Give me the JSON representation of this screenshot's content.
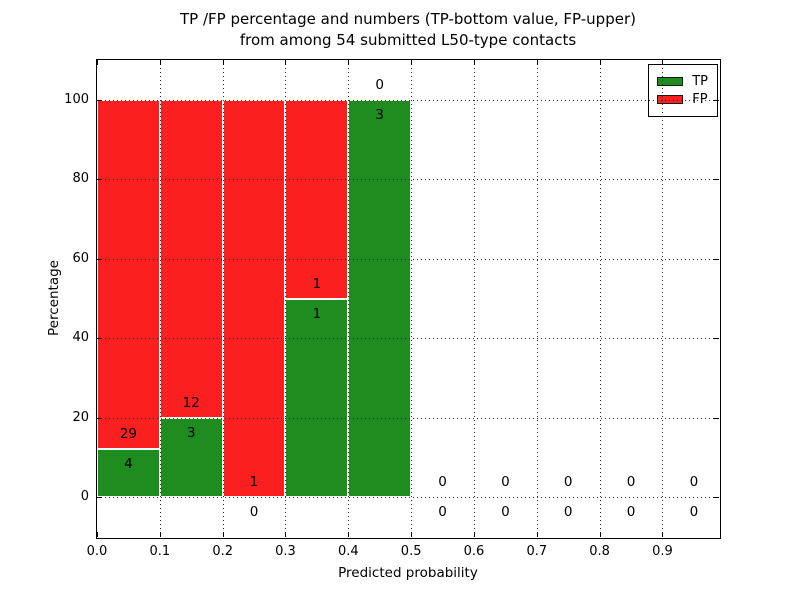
{
  "chart_data": {
    "type": "bar",
    "stacked": true,
    "title_line1": "TP /FP percentage and numbers (TP-bottom value, FP-upper)",
    "title_line2": "from among 54 submitted L50-type contacts",
    "xlabel": "Predicted probability",
    "ylabel": "Percentage",
    "xlim": [
      0,
      0.99
    ],
    "ylim": [
      -10,
      110
    ],
    "grid": true,
    "note": "Each bin stacks TP% (green, bottom) and FP% (red, top) of tp+fp; labels show raw counts: FP count above boundary, TP count below",
    "bins": [
      {
        "x0": 0.0,
        "x1": 0.1,
        "tp": 4,
        "fp": 29
      },
      {
        "x0": 0.1,
        "x1": 0.2,
        "tp": 3,
        "fp": 12
      },
      {
        "x0": 0.2,
        "x1": 0.3,
        "tp": 0,
        "fp": 1
      },
      {
        "x0": 0.3,
        "x1": 0.4,
        "tp": 1,
        "fp": 1
      },
      {
        "x0": 0.4,
        "x1": 0.5,
        "tp": 3,
        "fp": 0
      },
      {
        "x0": 0.5,
        "x1": 0.6,
        "tp": 0,
        "fp": 0
      },
      {
        "x0": 0.6,
        "x1": 0.7,
        "tp": 0,
        "fp": 0
      },
      {
        "x0": 0.7,
        "x1": 0.8,
        "tp": 0,
        "fp": 0
      },
      {
        "x0": 0.8,
        "x1": 0.9,
        "tp": 0,
        "fp": 0
      },
      {
        "x0": 0.9,
        "x1": 1.0,
        "tp": 0,
        "fp": 0
      }
    ],
    "xticks": [
      {
        "v": 0.0,
        "label": "0.0"
      },
      {
        "v": 0.1,
        "label": "0.1"
      },
      {
        "v": 0.2,
        "label": "0.2"
      },
      {
        "v": 0.3,
        "label": "0.3"
      },
      {
        "v": 0.4,
        "label": "0.4"
      },
      {
        "v": 0.5,
        "label": "0.5"
      },
      {
        "v": 0.6,
        "label": "0.6"
      },
      {
        "v": 0.7,
        "label": "0.7"
      },
      {
        "v": 0.8,
        "label": "0.8"
      },
      {
        "v": 0.9,
        "label": "0.9"
      }
    ],
    "yticks": [
      {
        "v": 0,
        "label": "0"
      },
      {
        "v": 20,
        "label": "20"
      },
      {
        "v": 40,
        "label": "40"
      },
      {
        "v": 60,
        "label": "60"
      },
      {
        "v": 80,
        "label": "80"
      },
      {
        "v": 100,
        "label": "100"
      }
    ],
    "legend": {
      "position": "upper right",
      "entries": [
        {
          "label": "TP",
          "color": "#1e8c1e"
        },
        {
          "label": "FP",
          "color": "#fb1f1f"
        }
      ]
    }
  },
  "colors": {
    "tp_green": "#1e8c1e",
    "fp_red": "#fb1f1f",
    "grid": "#2a2a2a",
    "frame": "#000000",
    "background": "#ffffff"
  }
}
